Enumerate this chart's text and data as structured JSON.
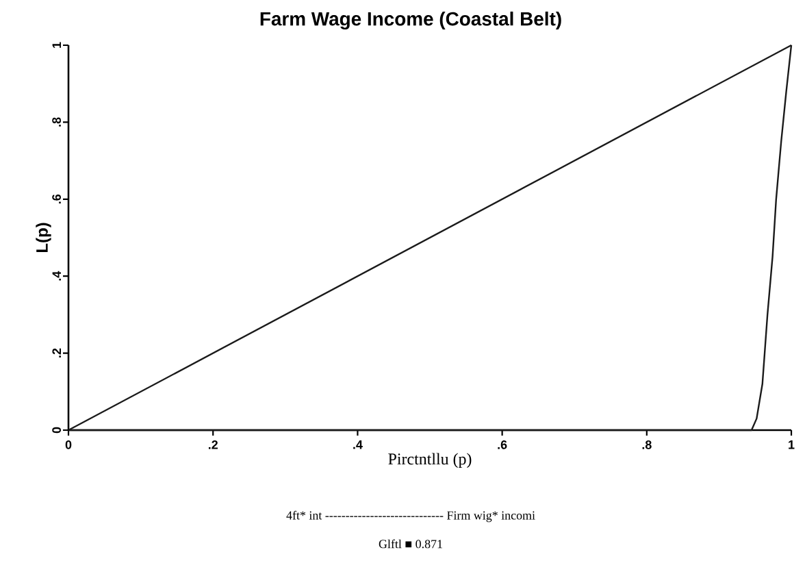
{
  "chart_data": {
    "type": "line",
    "title": "Farm Wage Income (Coastal Belt)",
    "xlabel": "Pirctntllu (p)",
    "ylabel": "L(p)",
    "xlim": [
      0,
      1
    ],
    "ylim": [
      0,
      1
    ],
    "xticks": [
      0,
      {
        "value": 0.2,
        "label": ".2"
      },
      {
        "value": 0.4,
        "label": ".4"
      },
      {
        "value": 0.6,
        "label": ".6"
      },
      {
        "value": 0.8,
        "label": ".8"
      },
      1
    ],
    "yticks": [
      0,
      {
        "value": 0.2,
        "label": ".2"
      },
      {
        "value": 0.4,
        "label": ".4"
      },
      {
        "value": 0.6,
        "label": ".6"
      },
      {
        "value": 0.8,
        "label": ".8"
      },
      1
    ],
    "series": [
      {
        "color": "#1a1a1a",
        "x": [
          0,
          1
        ],
        "values": [
          0,
          1
        ]
      },
      {
        "color": "#1a1a1a",
        "x": [
          0,
          0.945,
          0.952,
          0.96,
          0.967,
          0.974,
          0.979,
          0.986,
          0.993,
          1
        ],
        "values": [
          0,
          0,
          0.03,
          0.12,
          0.3,
          0.45,
          0.6,
          0.75,
          0.88,
          1
        ]
      }
    ],
    "line_style": "solid",
    "marker": "none",
    "annotations": [
      "4ft* int ----------------------------- Firm    wig*    incomi",
      "Glftl ■ 0.871"
    ]
  }
}
